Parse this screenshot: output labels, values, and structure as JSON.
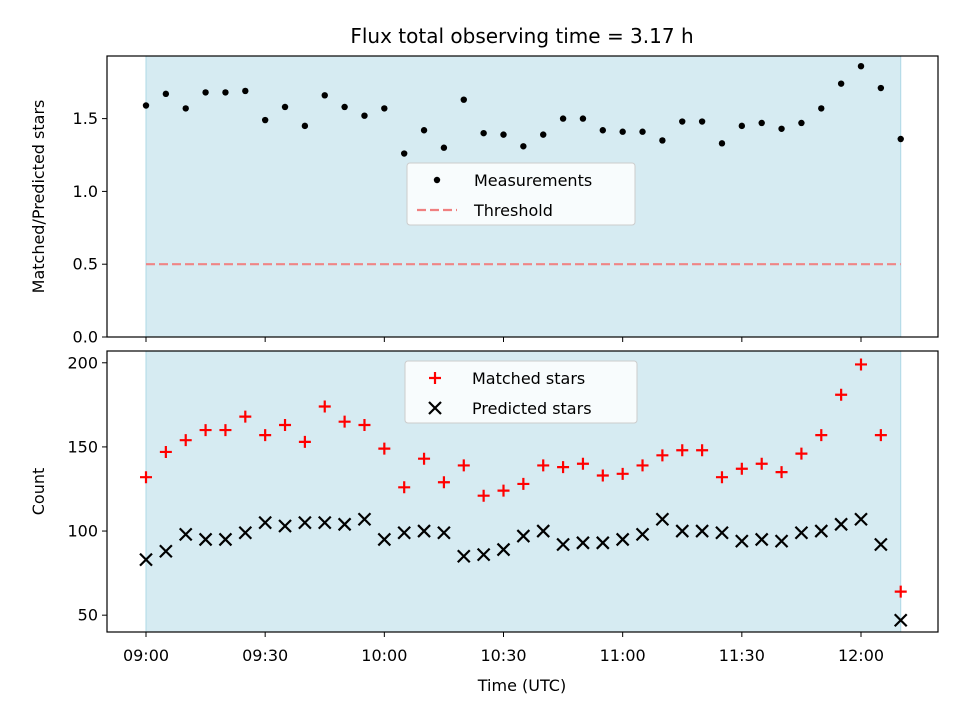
{
  "figure": {
    "title": "Flux total observing time = 3.17 h",
    "xlabel": "Time (UTC)",
    "observing_span_color": "#add8e6"
  },
  "chart_data": [
    {
      "type": "scatter",
      "ylabel": "Matched/Predicted stars",
      "ylim": [
        0,
        1.93
      ],
      "yticks": [
        0.0,
        0.5,
        1.0,
        1.5
      ],
      "ytick_labels": [
        "0.0",
        "0.5",
        "1.0",
        "1.5"
      ],
      "grid": false,
      "legend_placement": "center",
      "observing_span": [
        "09:00",
        "12:10"
      ],
      "x": [
        "09:00",
        "09:05",
        "09:10",
        "09:15",
        "09:20",
        "09:25",
        "09:30",
        "09:35",
        "09:40",
        "09:45",
        "09:50",
        "09:55",
        "10:00",
        "10:05",
        "10:10",
        "10:15",
        "10:20",
        "10:25",
        "10:30",
        "10:35",
        "10:40",
        "10:45",
        "10:50",
        "10:55",
        "11:00",
        "11:05",
        "11:10",
        "11:15",
        "11:20",
        "11:25",
        "11:30",
        "11:35",
        "11:40",
        "11:45",
        "11:50",
        "11:55",
        "12:00",
        "12:05",
        "12:10"
      ],
      "series": [
        {
          "name": "Measurements",
          "color": "#000000",
          "marker": "dot",
          "values": [
            1.59,
            1.67,
            1.57,
            1.68,
            1.68,
            1.69,
            1.49,
            1.58,
            1.45,
            1.66,
            1.58,
            1.52,
            1.57,
            1.26,
            1.42,
            1.3,
            1.63,
            1.4,
            1.39,
            1.31,
            1.39,
            1.5,
            1.5,
            1.42,
            1.41,
            1.41,
            1.35,
            1.48,
            1.48,
            1.33,
            1.45,
            1.47,
            1.43,
            1.47,
            1.57,
            1.74,
            1.86,
            1.71,
            1.36
          ]
        },
        {
          "name": "Threshold",
          "color": "#f08080",
          "style": "dashed",
          "values": [
            0.5,
            0.5
          ]
        }
      ]
    },
    {
      "type": "scatter",
      "ylabel": "Count",
      "ylim": [
        40,
        207
      ],
      "yticks": [
        50,
        100,
        150,
        200
      ],
      "ytick_labels": [
        "50",
        "100",
        "150",
        "200"
      ],
      "grid": false,
      "legend_placement": "top-center",
      "observing_span": [
        "09:00",
        "12:10"
      ],
      "x": [
        "09:00",
        "09:05",
        "09:10",
        "09:15",
        "09:20",
        "09:25",
        "09:30",
        "09:35",
        "09:40",
        "09:45",
        "09:50",
        "09:55",
        "10:00",
        "10:05",
        "10:10",
        "10:15",
        "10:20",
        "10:25",
        "10:30",
        "10:35",
        "10:40",
        "10:45",
        "10:50",
        "10:55",
        "11:00",
        "11:05",
        "11:10",
        "11:15",
        "11:20",
        "11:25",
        "11:30",
        "11:35",
        "11:40",
        "11:45",
        "11:50",
        "11:55",
        "12:00",
        "12:05",
        "12:10"
      ],
      "xtick_labels": [
        "09:00",
        "09:30",
        "10:00",
        "10:30",
        "11:00",
        "11:30",
        "12:00"
      ],
      "series": [
        {
          "name": "Matched stars",
          "color": "#ff0000",
          "marker": "plus",
          "values": [
            132,
            147,
            154,
            160,
            160,
            168,
            157,
            163,
            153,
            174,
            165,
            163,
            149,
            126,
            143,
            129,
            139,
            121,
            124,
            128,
            139,
            138,
            140,
            133,
            134,
            139,
            145,
            148,
            148,
            132,
            137,
            140,
            135,
            146,
            157,
            181,
            199,
            157,
            64
          ]
        },
        {
          "name": "Predicted stars",
          "color": "#000000",
          "marker": "x",
          "values": [
            83,
            88,
            98,
            95,
            95,
            99,
            105,
            103,
            105,
            105,
            104,
            107,
            95,
            99,
            100,
            99,
            85,
            86,
            89,
            97,
            100,
            92,
            93,
            93,
            95,
            98,
            107,
            100,
            100,
            99,
            94,
            95,
            94,
            99,
            100,
            104,
            107,
            92,
            47
          ]
        }
      ]
    }
  ]
}
